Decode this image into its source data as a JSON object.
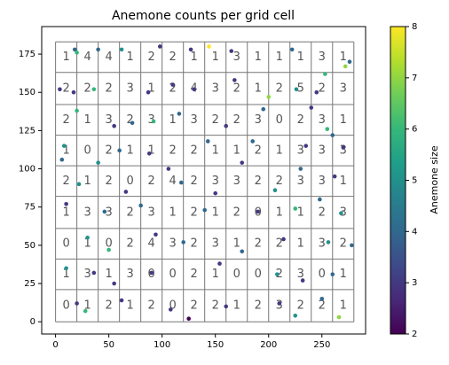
{
  "chart_data": {
    "type": "scatter",
    "title": "Anemone counts per grid cell",
    "colorbar_label": "Anemone size",
    "colormap": "viridis",
    "clim": [
      2,
      8
    ],
    "cticks": [
      2,
      3,
      4,
      5,
      6,
      7,
      8
    ],
    "xlim": [
      -13,
      291
    ],
    "ylim": [
      -8,
      193
    ],
    "xticks": [
      0,
      50,
      100,
      150,
      200,
      250
    ],
    "yticks": [
      0,
      25,
      50,
      75,
      100,
      125,
      150,
      175
    ],
    "grid_x": [
      0,
      20,
      40,
      60,
      80,
      100,
      120,
      140,
      160,
      180,
      200,
      220,
      240,
      260,
      280
    ],
    "grid_y": [
      0,
      21,
      41,
      61,
      82,
      102,
      122,
      142,
      163,
      183
    ],
    "counts": [
      [
        1,
        4,
        4,
        1,
        2,
        2,
        1,
        1,
        3,
        1,
        1,
        1,
        3,
        1
      ],
      [
        2,
        2,
        2,
        3,
        1,
        2,
        4,
        3,
        2,
        1,
        2,
        5,
        2,
        3
      ],
      [
        2,
        1,
        3,
        2,
        3,
        1,
        3,
        2,
        2,
        3,
        0,
        2,
        3,
        1
      ],
      [
        1,
        0,
        2,
        1,
        1,
        2,
        2,
        1,
        1,
        2,
        1,
        3,
        3,
        3
      ],
      [
        2,
        1,
        2,
        0,
        2,
        4,
        2,
        3,
        3,
        2,
        2,
        3,
        3,
        1
      ],
      [
        1,
        3,
        3,
        2,
        3,
        1,
        2,
        1,
        2,
        0,
        1,
        1,
        2,
        3
      ],
      [
        0,
        1,
        0,
        2,
        4,
        3,
        2,
        3,
        1,
        2,
        2,
        1,
        3,
        2
      ],
      [
        1,
        3,
        1,
        3,
        0,
        0,
        2,
        1,
        0,
        0,
        2,
        3,
        0,
        1
      ],
      [
        0,
        1,
        2,
        1,
        2,
        0,
        2,
        2,
        1,
        2,
        3,
        2,
        2,
        1
      ]
    ],
    "x": [
      18,
      40,
      62,
      20,
      144,
      98,
      127,
      165,
      222,
      276,
      253,
      272,
      4,
      17,
      36,
      87,
      110,
      130,
      168,
      200,
      226,
      245,
      240,
      20,
      55,
      72,
      92,
      116,
      160,
      195,
      255,
      260,
      8,
      60,
      88,
      143,
      185,
      235,
      270,
      6,
      40,
      106,
      175,
      230,
      262,
      22,
      66,
      118,
      150,
      206,
      248,
      10,
      46,
      80,
      140,
      190,
      225,
      268,
      30,
      50,
      94,
      120,
      175,
      214,
      256,
      278,
      10,
      36,
      55,
      90,
      154,
      208,
      232,
      260,
      20,
      28,
      62,
      108,
      125,
      160,
      210,
      225,
      266,
      250
    ],
    "y": [
      178,
      178,
      178,
      176,
      180,
      180,
      178,
      177,
      178,
      170,
      162,
      167,
      152,
      150,
      152,
      150,
      155,
      152,
      158,
      147,
      152,
      150,
      140,
      138,
      128,
      130,
      131,
      136,
      128,
      139,
      126,
      122,
      115,
      112,
      110,
      118,
      118,
      115,
      114,
      106,
      104,
      100,
      104,
      100,
      95,
      90,
      85,
      91,
      84,
      86,
      80,
      77,
      72,
      76,
      73,
      72,
      74,
      71,
      55,
      47,
      57,
      52,
      46,
      54,
      52,
      50,
      35,
      32,
      25,
      32,
      38,
      31,
      27,
      31,
      12,
      7,
      14,
      8,
      2,
      10,
      12,
      4,
      3,
      15
    ],
    "sizes": [
      4,
      4,
      5,
      6,
      8,
      3,
      3,
      3,
      4,
      4,
      6,
      7,
      3,
      3,
      6,
      3,
      3,
      3,
      3,
      7,
      5,
      3,
      3,
      6,
      3,
      4,
      6,
      4,
      3,
      4,
      6,
      4,
      5,
      4,
      3,
      4,
      4,
      3,
      3,
      4,
      5,
      3,
      3,
      4,
      3,
      5,
      3,
      4,
      3,
      5,
      4,
      3,
      4,
      4,
      4,
      3,
      6,
      5,
      5,
      6,
      3,
      4,
      4,
      3,
      5,
      4,
      5,
      3,
      3,
      3,
      3,
      5,
      3,
      4,
      3,
      6,
      3,
      3,
      2,
      3,
      3,
      5,
      7,
      4
    ]
  }
}
